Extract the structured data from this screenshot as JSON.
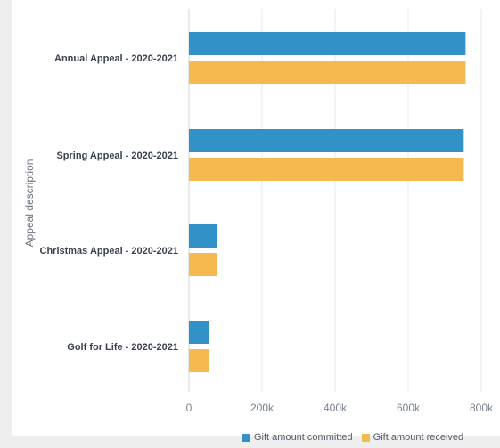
{
  "chart_data": {
    "type": "bar",
    "orientation": "horizontal",
    "categories": [
      "Annual Appeal - 2020-2021",
      "Spring Appeal - 2020-2021",
      "Christmas Appeal - 2020-2021",
      "Golf for Life - 2020-2021"
    ],
    "series": [
      {
        "name": "Gift amount committed",
        "color": "#3292c8",
        "values": [
          757000,
          752000,
          78000,
          55000
        ]
      },
      {
        "name": "Gift amount received",
        "color": "#f4b94f",
        "values": [
          757000,
          752000,
          78000,
          55000
        ]
      }
    ],
    "ylabel": "Appeal description",
    "xlim": [
      0,
      800000
    ],
    "x_ticks": [
      0,
      200000,
      400000,
      600000,
      800000
    ],
    "x_tick_labels": [
      "0",
      "200k",
      "400k",
      "600k",
      "800k"
    ],
    "grid": true,
    "legend_position": "bottom"
  }
}
